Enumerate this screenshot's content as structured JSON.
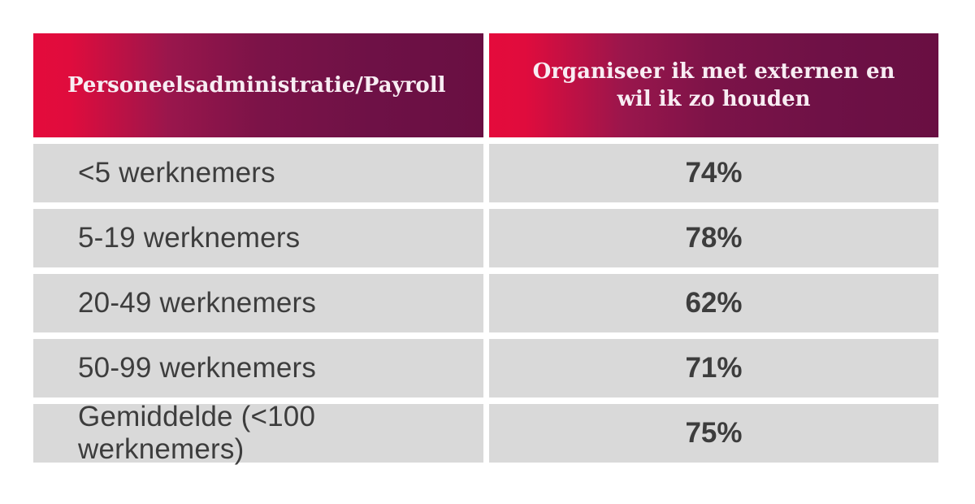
{
  "table": {
    "header": {
      "col1": "Personeelsadministratie/Payroll",
      "col2": "Organiseer ik met externen en wil ik zo houden"
    },
    "rows": [
      {
        "label": "<5 werknemers",
        "value": "74%"
      },
      {
        "label": "5-19 werknemers",
        "value": "78%"
      },
      {
        "label": "20-49 werknemers",
        "value": "62%"
      },
      {
        "label": "50-99 werknemers",
        "value": "71%"
      },
      {
        "label": "Gemiddelde (<100 werknemers)",
        "value": "75%"
      }
    ]
  },
  "colors": {
    "gradient_start": "#e40b3c",
    "gradient_end": "#690f42",
    "header_text": "#f8edf3",
    "row_bg": "#d9d9d9",
    "row_text": "#3d3d3d"
  },
  "chart_data": {
    "type": "table",
    "title": "Personeelsadministratie/Payroll",
    "columns": [
      "Personeelsadministratie/Payroll",
      "Organiseer ik met externen en wil ik zo houden"
    ],
    "categories": [
      "<5 werknemers",
      "5-19 werknemers",
      "20-49 werknemers",
      "50-99 werknemers",
      "Gemiddelde (<100 werknemers)"
    ],
    "values": [
      74,
      78,
      62,
      71,
      75
    ],
    "value_format": "percent"
  }
}
